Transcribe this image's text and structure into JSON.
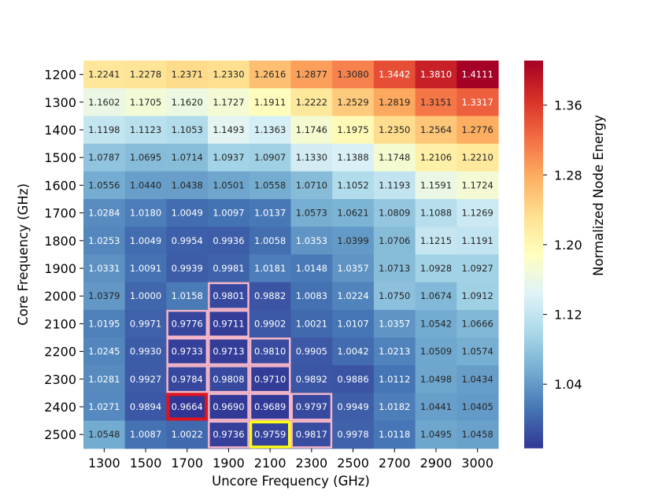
{
  "chart_data": {
    "type": "heatmap",
    "title": "",
    "xlabel": "Uncore Frequency (GHz)",
    "ylabel": "Core Frequency (GHz)",
    "colorbar_label": "Normalized  Node Energy",
    "x_categories": [
      "1300",
      "1500",
      "1700",
      "1900",
      "2100",
      "2300",
      "2500",
      "2700",
      "2900",
      "3000"
    ],
    "y_categories": [
      "1200",
      "1300",
      "1400",
      "1500",
      "1600",
      "1700",
      "1800",
      "1900",
      "2000",
      "2100",
      "2200",
      "2300",
      "2400",
      "2500"
    ],
    "values": [
      [
        "1.2241",
        "1.2278",
        "1.2371",
        "1.2330",
        "1.2616",
        "1.2877",
        "1.3080",
        "1.3442",
        "1.3810",
        "1.4111"
      ],
      [
        "1.1602",
        "1.1705",
        "1.1620",
        "1.1727",
        "1.1911",
        "1.2222",
        "1.2529",
        "1.2819",
        "1.3151",
        "1.3317"
      ],
      [
        "1.1198",
        "1.1123",
        "1.1053",
        "1.1493",
        "1.1363",
        "1.1746",
        "1.1975",
        "1.2350",
        "1.2564",
        "1.2776"
      ],
      [
        "1.0787",
        "1.0695",
        "1.0714",
        "1.0937",
        "1.0907",
        "1.1330",
        "1.1388",
        "1.1748",
        "1.2106",
        "1.2210"
      ],
      [
        "1.0556",
        "1.0440",
        "1.0438",
        "1.0501",
        "1.0558",
        "1.0710",
        "1.1052",
        "1.1193",
        "1.1591",
        "1.1724"
      ],
      [
        "1.0284",
        "1.0180",
        "1.0049",
        "1.0097",
        "1.0137",
        "1.0573",
        "1.0621",
        "1.0809",
        "1.1088",
        "1.1269"
      ],
      [
        "1.0253",
        "1.0049",
        "0.9954",
        "0.9936",
        "1.0058",
        "1.0353",
        "1.0399",
        "1.0706",
        "1.1215",
        "1.1191"
      ],
      [
        "1.0331",
        "1.0091",
        "0.9939",
        "0.9981",
        "1.0181",
        "1.0148",
        "1.0357",
        "1.0713",
        "1.0928",
        "1.0927"
      ],
      [
        "1.0379",
        "1.0000",
        "1.0158",
        "0.9801",
        "0.9882",
        "1.0083",
        "1.0224",
        "1.0750",
        "1.0674",
        "1.0912"
      ],
      [
        "1.0195",
        "0.9971",
        "0.9776",
        "0.9711",
        "0.9902",
        "1.0021",
        "1.0107",
        "1.0357",
        "1.0542",
        "1.0666"
      ],
      [
        "1.0245",
        "0.9930",
        "0.9733",
        "0.9713",
        "0.9810",
        "0.9905",
        "1.0042",
        "1.0213",
        "1.0509",
        "1.0574"
      ],
      [
        "1.0281",
        "0.9927",
        "0.9784",
        "0.9808",
        "0.9710",
        "0.9892",
        "0.9886",
        "1.0112",
        "1.0498",
        "1.0434"
      ],
      [
        "1.0271",
        "0.9894",
        "0.9664",
        "0.9690",
        "0.9689",
        "0.9797",
        "0.9949",
        "1.0182",
        "1.0441",
        "1.0405"
      ],
      [
        "1.0548",
        "1.0087",
        "1.0022",
        "0.9736",
        "0.9759",
        "0.9817",
        "0.9978",
        "1.0118",
        "1.0495",
        "1.0458"
      ]
    ],
    "color_range": [
      0.9664,
      1.4111
    ],
    "colormap": "RdYlBu_r",
    "colorbar_ticks": [
      "1.04",
      "1.12",
      "1.20",
      "1.28",
      "1.36"
    ],
    "highlights": {
      "pink_cells": [
        [
          8,
          3
        ],
        [
          9,
          2
        ],
        [
          9,
          3
        ],
        [
          10,
          2
        ],
        [
          10,
          3
        ],
        [
          10,
          4
        ],
        [
          11,
          2
        ],
        [
          11,
          3
        ],
        [
          11,
          4
        ],
        [
          12,
          3
        ],
        [
          12,
          4
        ],
        [
          12,
          5
        ],
        [
          13,
          3
        ],
        [
          13,
          5
        ]
      ],
      "red_cells": [
        [
          12,
          2
        ]
      ],
      "yellow_cells": [
        [
          13,
          4
        ]
      ],
      "pink_color": "#f4b6c8",
      "red_color": "#e0141e",
      "yellow_color": "#ffff14"
    }
  }
}
